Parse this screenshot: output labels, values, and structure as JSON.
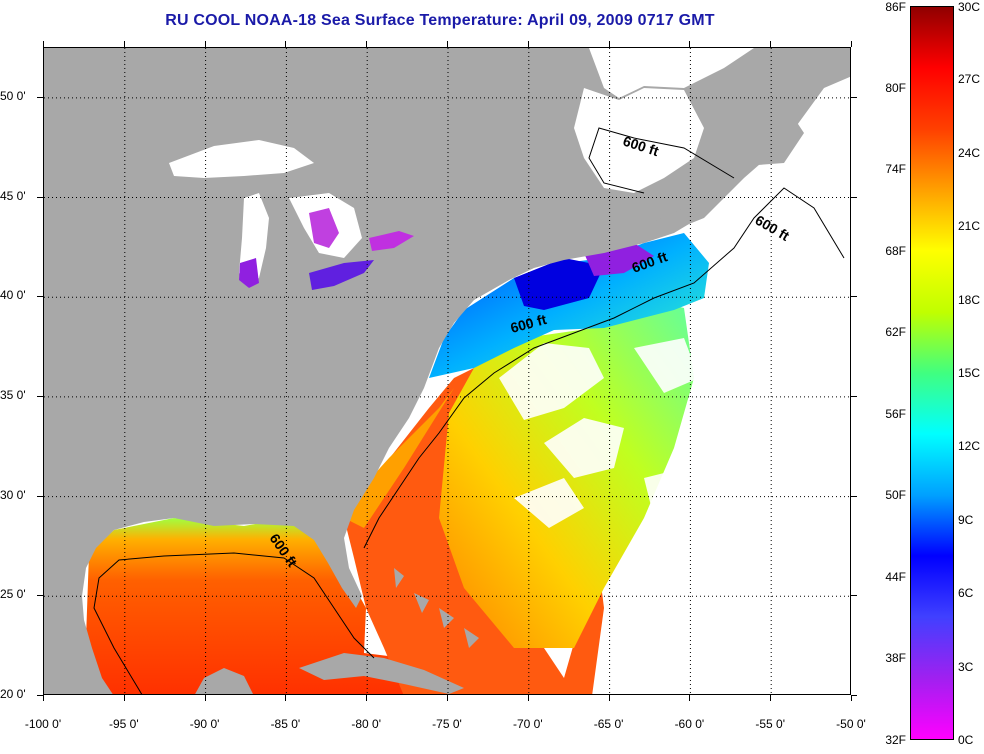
{
  "title": "RU COOL  NOAA-18  Sea Surface Temperature:  April 09, 2009 0717 GMT",
  "map": {
    "lon_range": [
      -100,
      -50
    ],
    "lat_range": [
      20,
      52.5
    ],
    "lat_labels": [
      "50 0'",
      "45 0'",
      "40 0'",
      "35 0'",
      "30 0'",
      "25 0'",
      "20 0'"
    ],
    "lat_values": [
      50,
      45,
      40,
      35,
      30,
      25,
      20
    ],
    "lon_labels": [
      "-100 0'",
      "-95 0'",
      "-90 0'",
      "-85 0'",
      "-80 0'",
      "-75 0'",
      "-70 0'",
      "-65 0'",
      "-60 0'",
      "-55 0'",
      "-50 0'"
    ],
    "lon_values": [
      -100,
      -95,
      -90,
      -85,
      -80,
      -75,
      -70,
      -65,
      -60,
      -55,
      -50
    ],
    "contour_label": "600 ft",
    "land_color": "#a8a8a8",
    "cloud_color": "#ffffff"
  },
  "colorbar": {
    "fahrenheit_labels": [
      "86F",
      "80F",
      "74F",
      "68F",
      "62F",
      "56F",
      "50F",
      "44F",
      "38F",
      "32F"
    ],
    "celsius_labels": [
      "30C",
      "27C",
      "24C",
      "21C",
      "18C",
      "15C",
      "12C",
      "9C",
      "6C",
      "3C",
      "0C"
    ],
    "range_c": [
      0,
      30
    ],
    "colors": [
      "#ff00ff",
      "#a020f0",
      "#4040ff",
      "#0000ff",
      "#00a0ff",
      "#00ffff",
      "#40ff80",
      "#c0ff00",
      "#ffff00",
      "#ffa000",
      "#ff4000",
      "#ff0000",
      "#900000"
    ]
  }
}
